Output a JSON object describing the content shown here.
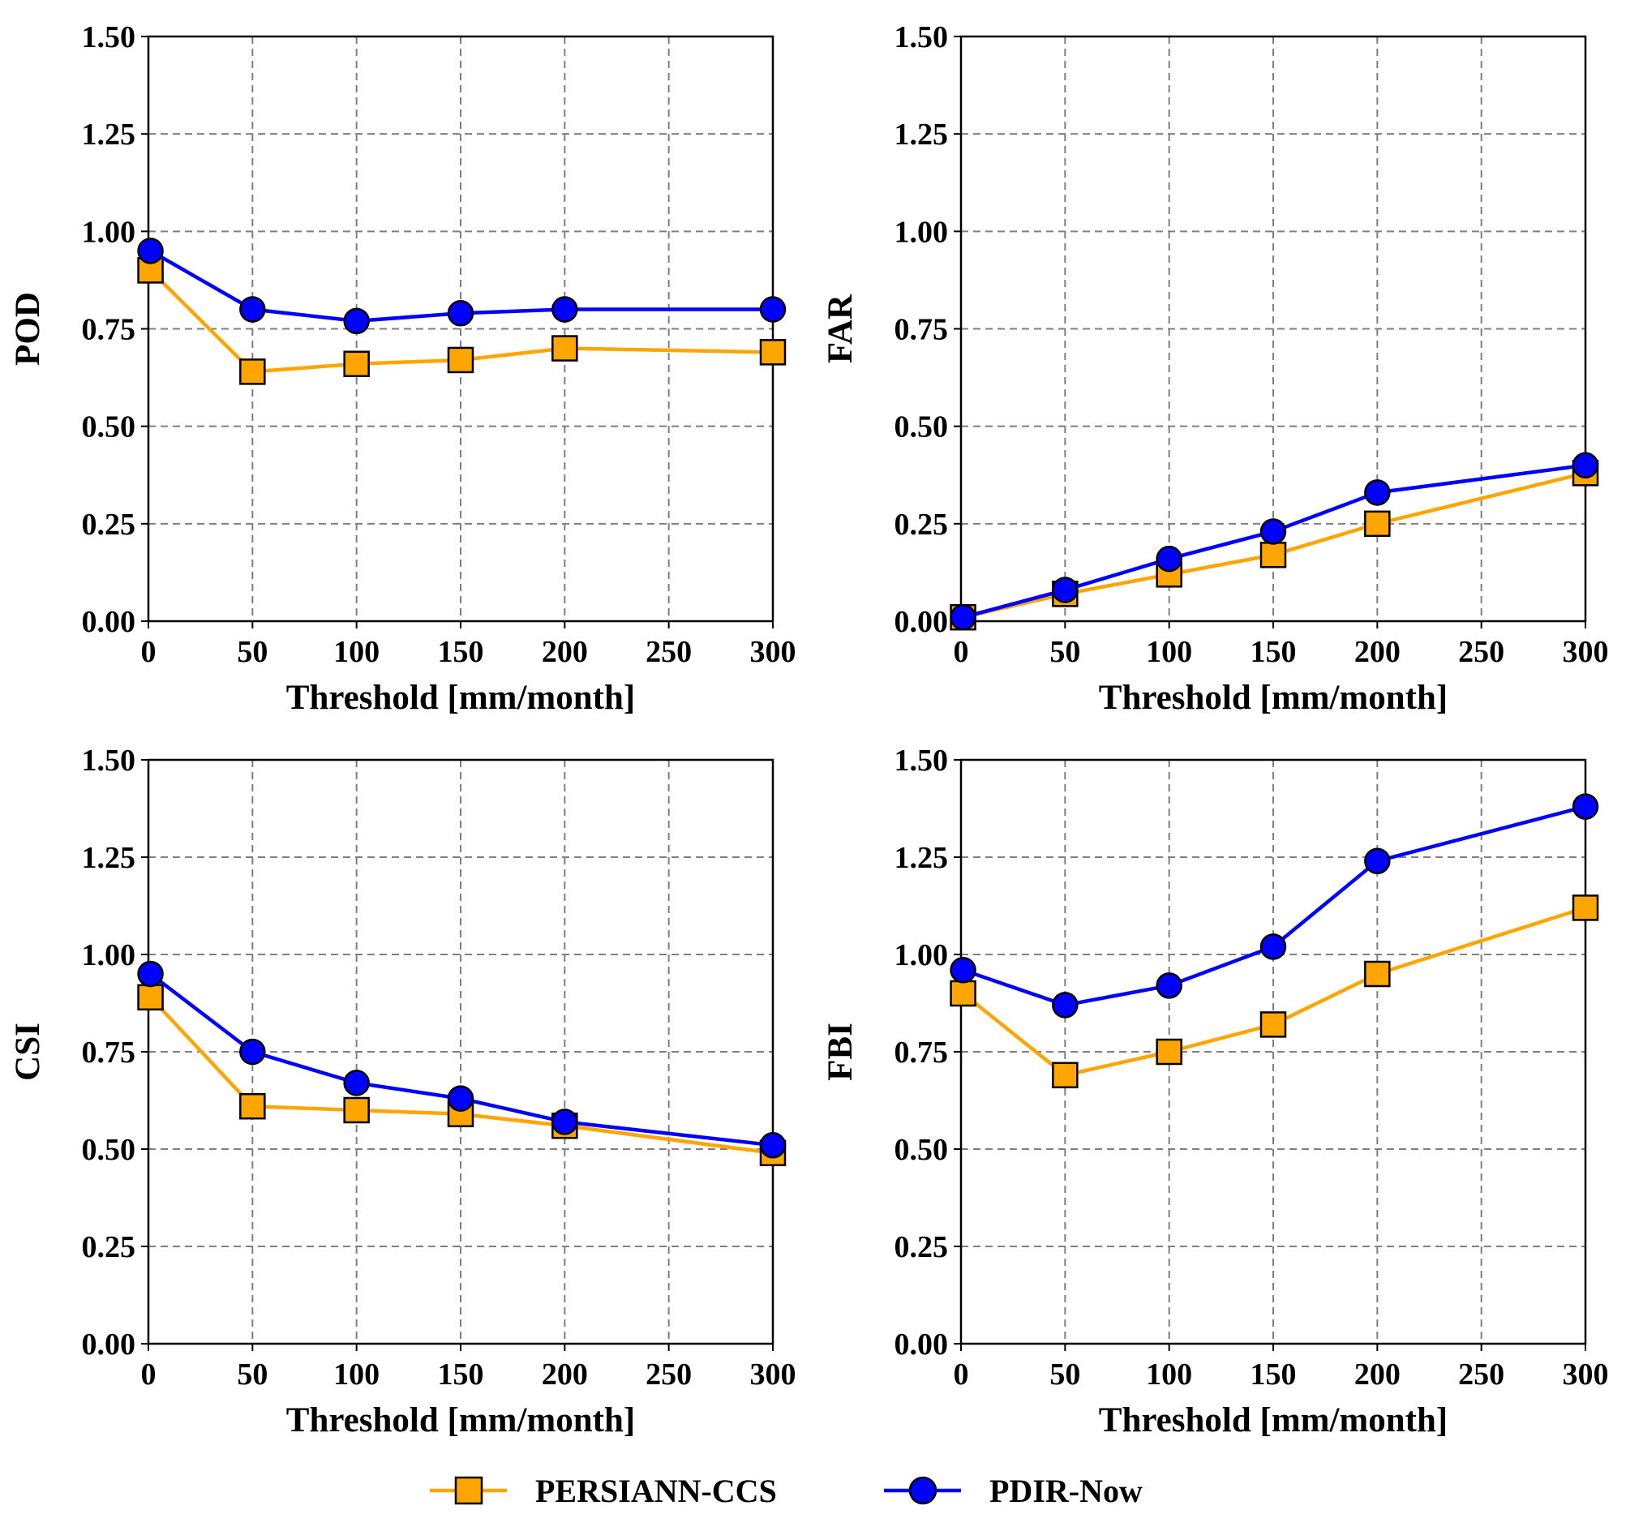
{
  "colors": {
    "persiann": "#FFA500",
    "pdir": "#0000FF",
    "marker_edge": "#000000",
    "grid": "#7f7f7f"
  },
  "legend": {
    "items": [
      {
        "label": "PERSIANN-CCS",
        "color": "#FFA500",
        "marker": "square"
      },
      {
        "label": "PDIR-Now",
        "color": "#0000FF",
        "marker": "circle"
      }
    ]
  },
  "chart_data": [
    {
      "type": "line",
      "id": "pod",
      "xlabel": "Threshold [mm/month]",
      "ylabel": "POD",
      "xlim": [
        0,
        300
      ],
      "ylim": [
        0,
        1.5
      ],
      "xticks": [
        "0",
        "50",
        "100",
        "150",
        "200",
        "250",
        "300"
      ],
      "yticks": [
        "0.00",
        "0.25",
        "0.50",
        "0.75",
        "1.00",
        "1.25",
        "1.50"
      ],
      "grid": true,
      "x": [
        1,
        50,
        100,
        150,
        200,
        300
      ],
      "series": [
        {
          "name": "PERSIANN-CCS",
          "marker": "square",
          "values": [
            0.9,
            0.64,
            0.66,
            0.67,
            0.7,
            0.69
          ]
        },
        {
          "name": "PDIR-Now",
          "marker": "circle",
          "values": [
            0.95,
            0.8,
            0.77,
            0.79,
            0.8,
            0.8
          ]
        }
      ]
    },
    {
      "type": "line",
      "id": "far",
      "xlabel": "Threshold [mm/month]",
      "ylabel": "FAR",
      "xlim": [
        0,
        300
      ],
      "ylim": [
        0,
        1.5
      ],
      "xticks": [
        "0",
        "50",
        "100",
        "150",
        "200",
        "250",
        "300"
      ],
      "yticks": [
        "0.00",
        "0.25",
        "0.50",
        "0.75",
        "1.00",
        "1.25",
        "1.50"
      ],
      "grid": true,
      "x": [
        1,
        50,
        100,
        150,
        200,
        300
      ],
      "series": [
        {
          "name": "PERSIANN-CCS",
          "marker": "square",
          "values": [
            0.01,
            0.07,
            0.12,
            0.17,
            0.25,
            0.38
          ]
        },
        {
          "name": "PDIR-Now",
          "marker": "circle",
          "values": [
            0.01,
            0.08,
            0.16,
            0.23,
            0.33,
            0.4
          ]
        }
      ]
    },
    {
      "type": "line",
      "id": "csi",
      "xlabel": "Threshold [mm/month]",
      "ylabel": "CSI",
      "xlim": [
        0,
        300
      ],
      "ylim": [
        0,
        1.5
      ],
      "xticks": [
        "0",
        "50",
        "100",
        "150",
        "200",
        "250",
        "300"
      ],
      "yticks": [
        "0.00",
        "0.25",
        "0.50",
        "0.75",
        "1.00",
        "1.25",
        "1.50"
      ],
      "grid": true,
      "x": [
        1,
        50,
        100,
        150,
        200,
        300
      ],
      "series": [
        {
          "name": "PERSIANN-CCS",
          "marker": "square",
          "values": [
            0.89,
            0.61,
            0.6,
            0.59,
            0.56,
            0.49
          ]
        },
        {
          "name": "PDIR-Now",
          "marker": "circle",
          "values": [
            0.95,
            0.75,
            0.67,
            0.63,
            0.57,
            0.51
          ]
        }
      ]
    },
    {
      "type": "line",
      "id": "fbi",
      "xlabel": "Threshold [mm/month]",
      "ylabel": "FBI",
      "xlim": [
        0,
        300
      ],
      "ylim": [
        0,
        1.5
      ],
      "xticks": [
        "0",
        "50",
        "100",
        "150",
        "200",
        "250",
        "300"
      ],
      "yticks": [
        "0.00",
        "0.25",
        "0.50",
        "0.75",
        "1.00",
        "1.25",
        "1.50"
      ],
      "grid": true,
      "x": [
        1,
        50,
        100,
        150,
        200,
        300
      ],
      "series": [
        {
          "name": "PERSIANN-CCS",
          "marker": "square",
          "values": [
            0.9,
            0.69,
            0.75,
            0.82,
            0.95,
            1.12
          ]
        },
        {
          "name": "PDIR-Now",
          "marker": "circle",
          "values": [
            0.96,
            0.87,
            0.92,
            1.02,
            1.24,
            1.38
          ]
        }
      ]
    }
  ]
}
